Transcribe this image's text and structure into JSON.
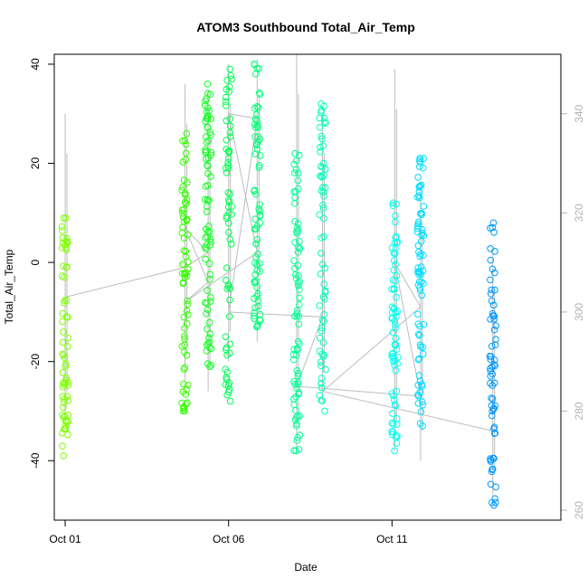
{
  "chart_data": {
    "type": "scatter",
    "title": "ATOM3 Southbound Total_Air_Temp",
    "xlabel": "Date",
    "ylabel": "Total_Air_Temp",
    "x_is_date": true,
    "xlim": [
      "2016-09-30T16:00",
      "2016-10-16T04:00"
    ],
    "ylim": [
      -52,
      42
    ],
    "y2lim": [
      258,
      352
    ],
    "x_ticks": [
      {
        "value": "2016-10-01T00:00",
        "label": "Oct 01"
      },
      {
        "value": "2016-10-06T00:00",
        "label": "Oct 06"
      },
      {
        "value": "2016-10-11T00:00",
        "label": "Oct 11"
      }
    ],
    "y_ticks": [
      40,
      20,
      0,
      -20,
      -40
    ],
    "y2_ticks": [
      340,
      320,
      300,
      280,
      260
    ],
    "grid": false,
    "legend": "none",
    "colors": {
      "secondary_line": "#bdbdbd",
      "right_axis": "#b3b3b3",
      "axis": "#000000"
    },
    "flights": [
      {
        "x": "2016-10-01T00:00",
        "color": "#7fff00",
        "ymin": -39,
        "ymax": 9,
        "y2min": 278,
        "y2max": 340
      },
      {
        "x": "2016-10-04T16:00",
        "color": "#33ff00",
        "ymin": -30,
        "ymax": 26,
        "y2min": 286,
        "y2max": 346
      },
      {
        "x": "2016-10-05T09:00",
        "color": "#11ff22",
        "ymin": -21,
        "ymax": 36,
        "y2min": 284,
        "y2max": 345
      },
      {
        "x": "2016-10-06T00:00",
        "color": "#00ff55",
        "ymin": -28,
        "ymax": 39,
        "y2min": 290,
        "y2max": 350
      },
      {
        "x": "2016-10-06T21:00",
        "color": "#00ff77",
        "ymin": -13,
        "ymax": 40,
        "y2min": 294,
        "y2max": 351
      },
      {
        "x": "2016-10-08T02:00",
        "color": "#00ff99",
        "ymin": -38,
        "ymax": 22,
        "y2min": 272,
        "y2max": 352
      },
      {
        "x": "2016-10-08T21:00",
        "color": "#00ffbb",
        "ymin": -30,
        "ymax": 32,
        "y2min": 282,
        "y2max": 340
      },
      {
        "x": "2016-10-11T02:00",
        "color": "#00ffee",
        "ymin": -38,
        "ymax": 12,
        "y2min": 272,
        "y2max": 349
      },
      {
        "x": "2016-10-11T21:00",
        "color": "#00ddff",
        "ymin": -33,
        "ymax": 21,
        "y2min": 270,
        "y2max": 326
      },
      {
        "x": "2016-10-14T02:00",
        "color": "#0099ff",
        "ymin": -49,
        "ymax": 8,
        "y2min": 263,
        "y2max": 312
      }
    ],
    "connector_line": [
      {
        "x": "2016-10-01T00:00",
        "y2": 303
      },
      {
        "x": "2016-10-04T16:00",
        "y2": 309
      },
      {
        "x": "2016-10-05T09:00",
        "y2": 312
      },
      {
        "x": "2016-10-04T16:00",
        "y2": 317
      },
      {
        "x": "2016-10-05T09:00",
        "y2": 306
      },
      {
        "x": "2016-10-04T16:00",
        "y2": 302
      },
      {
        "x": "2016-10-06T21:00",
        "y2": 312
      },
      {
        "x": "2016-10-06T00:00",
        "y2": 340
      },
      {
        "x": "2016-10-06T21:00",
        "y2": 339
      },
      {
        "x": "2016-10-06T00:00",
        "y2": 300
      },
      {
        "x": "2016-10-08T21:00",
        "y2": 299
      },
      {
        "x": "2016-10-08T02:00",
        "y2": 285
      },
      {
        "x": "2016-10-11T21:00",
        "y2": 283
      },
      {
        "x": "2016-10-11T02:00",
        "y2": 310
      },
      {
        "x": "2016-10-11T21:00",
        "y2": 301
      },
      {
        "x": "2016-10-08T21:00",
        "y2": 284
      },
      {
        "x": "2016-10-14T02:00",
        "y2": 276
      }
    ]
  }
}
